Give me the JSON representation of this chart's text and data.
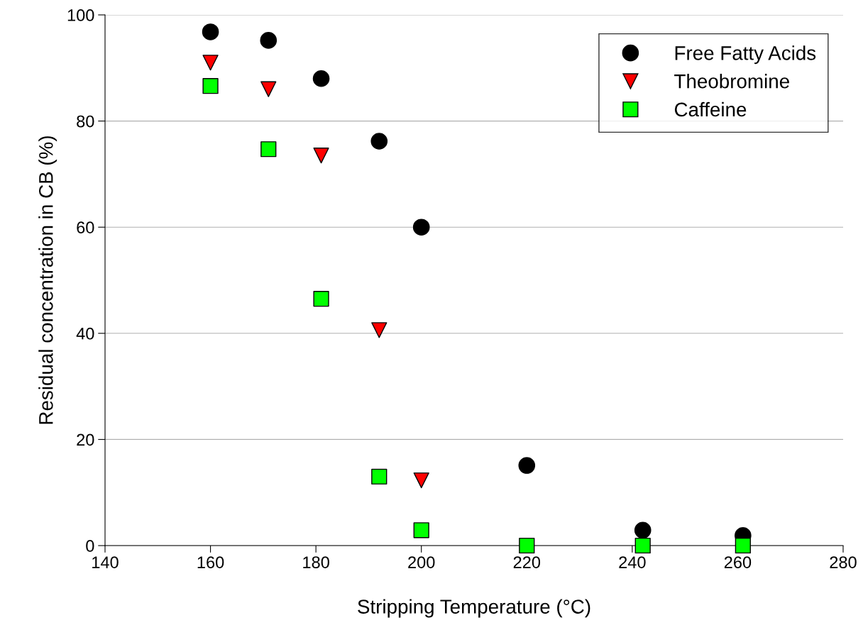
{
  "chart_data": {
    "type": "scatter",
    "xlabel": "Stripping Temperature (°C)",
    "ylabel": "Residual concentration in CB (%)",
    "xlim": [
      140,
      280
    ],
    "xticks": [
      140,
      160,
      180,
      200,
      220,
      240,
      260,
      280
    ],
    "ylim": [
      0,
      100
    ],
    "yticks": [
      0,
      20,
      40,
      60,
      80,
      100
    ],
    "grid": "y",
    "legend": "top right",
    "x": [
      160,
      171,
      181,
      192,
      200,
      220,
      242,
      261
    ],
    "series": [
      {
        "name": "Free Fatty Acids",
        "color": "#000000",
        "marker": "circle",
        "values": [
          96.8,
          95.2,
          88.0,
          76.2,
          60.0,
          15.1,
          2.9,
          1.9
        ]
      },
      {
        "name": "Theobromine",
        "color": "#ff0000",
        "marker": "triangle",
        "values": [
          91.0,
          86.0,
          73.5,
          40.6,
          12.3,
          null,
          null,
          null
        ]
      },
      {
        "name": "Caffeine",
        "color": "#00ff00",
        "marker": "square",
        "values": [
          86.6,
          74.7,
          46.5,
          13.0,
          2.9,
          0,
          0,
          0
        ]
      }
    ]
  }
}
